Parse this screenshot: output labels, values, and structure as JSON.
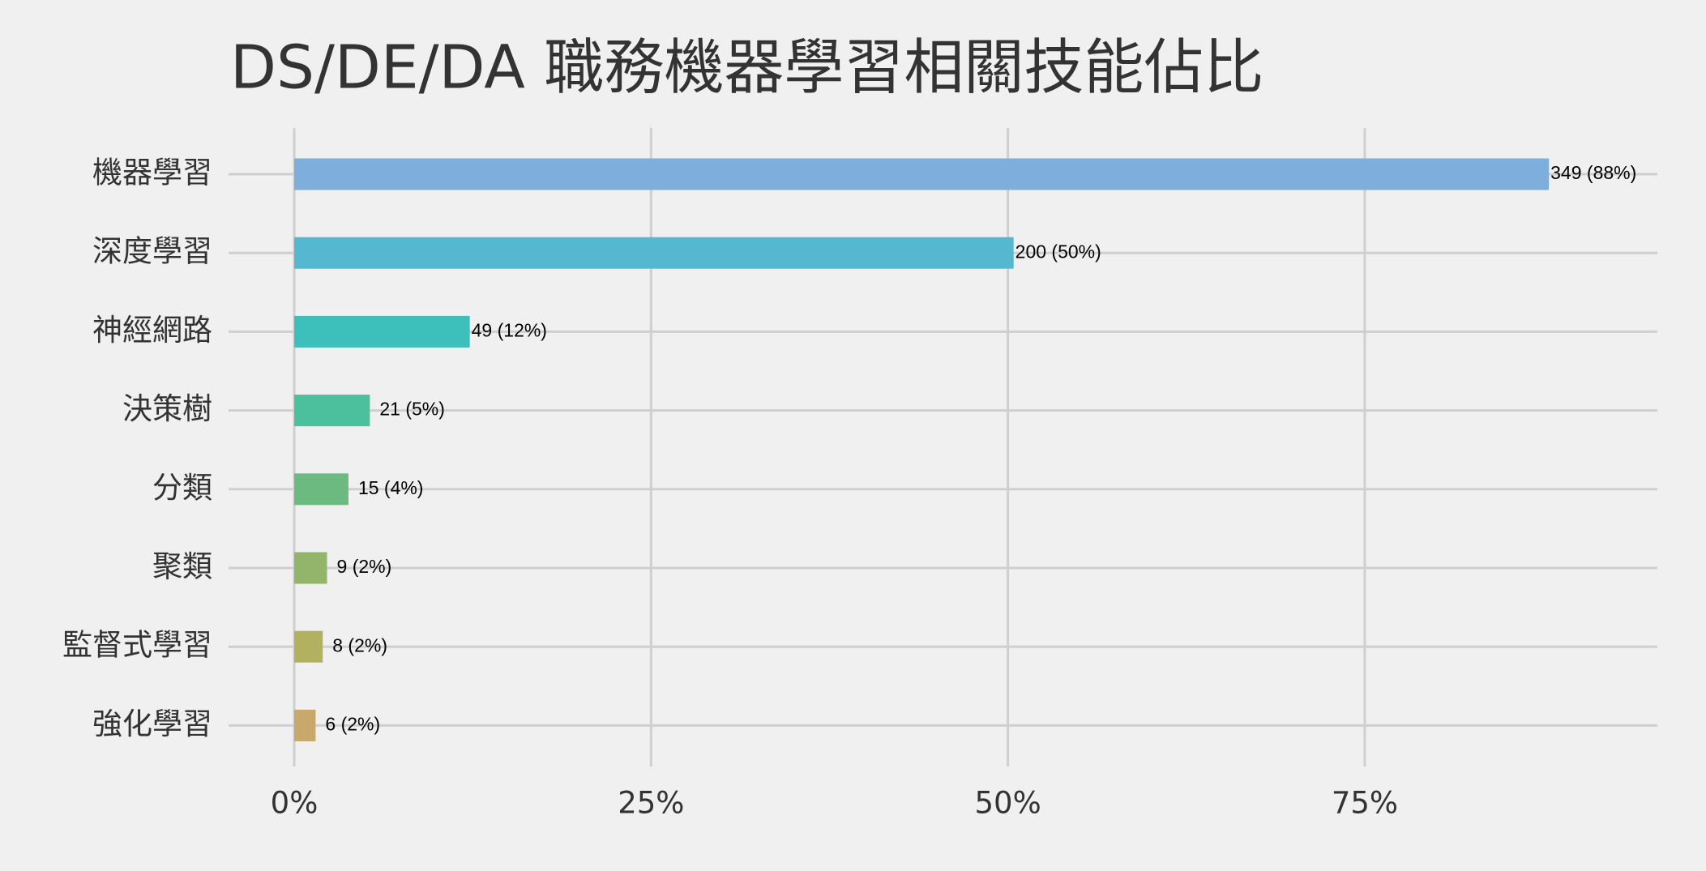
{
  "chart_data": {
    "type": "barh",
    "title": "DS/DE/DA 職務機器學習相關技能佔比",
    "categories": [
      "機器學習",
      "深度學習",
      "神經網路",
      "決策樹",
      "分類",
      "聚類",
      "監督式學習",
      "強化學習"
    ],
    "values": [
      87.9,
      50.4,
      12.3,
      5.3,
      3.8,
      2.3,
      2.0,
      1.5
    ],
    "value_labels": [
      "349 (88%)",
      "200 (50%)",
      "49 (12%)",
      "21 (5%)",
      "15 (4%)",
      "9 (2%)",
      "8 (2%)",
      "6 (2%)"
    ],
    "colors": [
      "#7eaedc",
      "#56b8d0",
      "#3dbfbb",
      "#4cbf9c",
      "#6dba80",
      "#92b46b",
      "#b1b160",
      "#c9a96b"
    ],
    "xlim": [
      -4.6,
      95.5
    ],
    "xticks": [
      {
        "value": 0,
        "label": "0%"
      },
      {
        "value": 25,
        "label": "25%"
      },
      {
        "value": 50,
        "label": "50%"
      },
      {
        "value": 75,
        "label": "75%"
      }
    ],
    "grid": true
  }
}
